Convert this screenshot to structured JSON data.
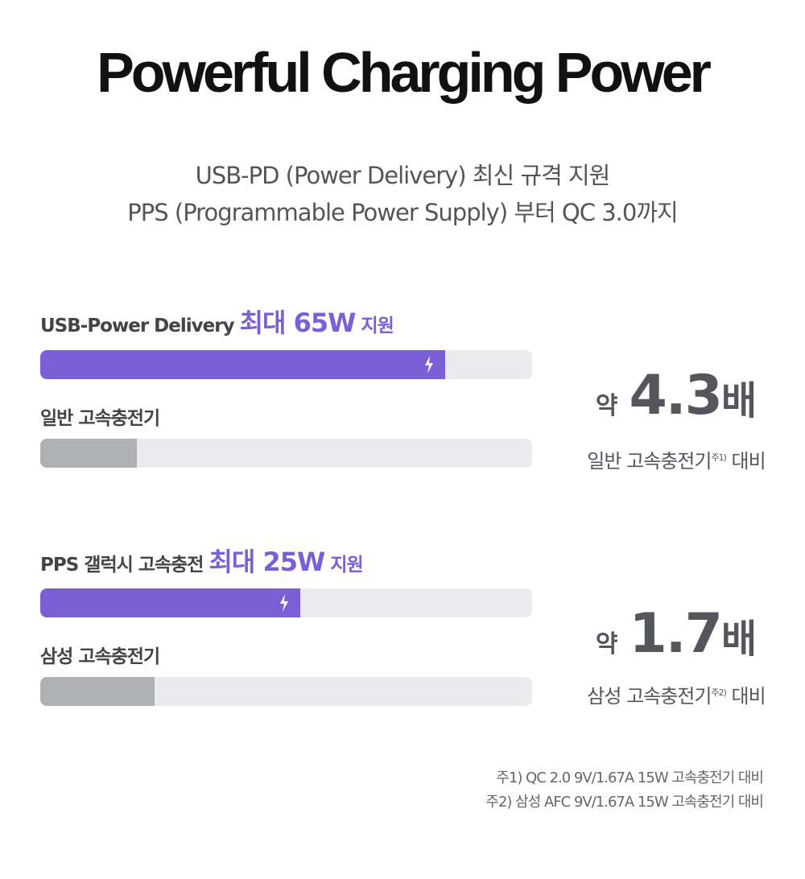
{
  "title": "Powerful Charging Power",
  "subtitle": {
    "line1": "USB-PD (Power Delivery) 최신 규격 지원",
    "line2": "PPS (Programmable Power Supply) 부터 QC 3.0까지"
  },
  "sections": [
    {
      "label_prefix": "USB-Power Delivery",
      "label_highlight": "최대 65W",
      "label_suffix": "지원",
      "primary_fill": 0.823,
      "compare_label": "일반 고속충전기",
      "compare_fill": 0.197,
      "ratio_prefix": "약",
      "ratio_value": "4.3",
      "ratio_unit": "배",
      "ratio_compare": "일반 고속충전기",
      "ratio_note_mark": "주1)",
      "ratio_compare_suffix": "대비"
    },
    {
      "label_prefix": "PPS 갤럭시 고속충전",
      "label_highlight": "최대 25W",
      "label_suffix": "지원",
      "primary_fill": 0.529,
      "compare_label": "삼성 고속충전기",
      "compare_fill": 0.232,
      "ratio_prefix": "약",
      "ratio_value": "1.7",
      "ratio_unit": "배",
      "ratio_compare": "삼성 고속충전기",
      "ratio_note_mark": "주2)",
      "ratio_compare_suffix": "대비"
    }
  ],
  "footnotes": [
    "주1) QC 2.0 9V/1.67A 15W 고속충전기 대비",
    "주2) 삼성 AFC 9V/1.67A 15W 고속충전기 대비"
  ],
  "colors": {
    "accent": "#7a5fd6",
    "compare_bar": "#afb0b2",
    "track": "#ebebed"
  }
}
